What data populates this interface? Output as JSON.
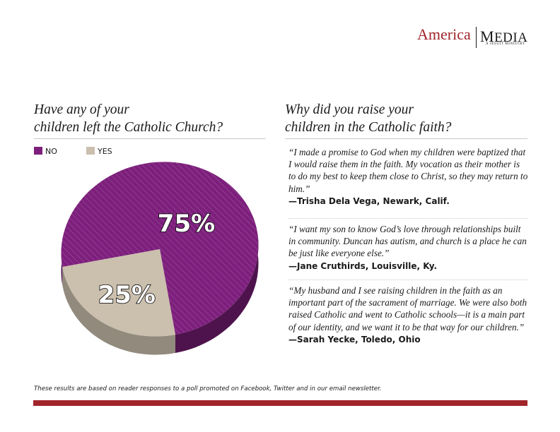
{
  "colors": {
    "no": "#7d1f7c",
    "yes": "#cbbfae",
    "brand_red": "#a0252b"
  },
  "logo": {
    "america": "America",
    "media_initial_m": "M",
    "media_rest": "EDIA",
    "tagline": "A JESUIT MINISTRY"
  },
  "left": {
    "question_line1": "Have any of your",
    "question_line2": "children left the Catholic Church?"
  },
  "right": {
    "question_line1": "Why did you raise your",
    "question_line2": "children in the Catholic faith?",
    "quotes": [
      {
        "text": "“I made a promise to God when my children were baptized that I would raise them in the faith. My vocation as their mother is to do my best to keep them close to Christ, so they may return to him.”",
        "attribution": "—Trisha Dela Vega, Newark, Calif."
      },
      {
        "text": "“I want my son to know God’s love through relationships built in community. Duncan has autism, and church is a place he can be just like everyone else.”",
        "attribution": "—Jane Cruthirds, Louisville, Ky."
      },
      {
        "text": "“My husband and I see raising children in the faith as an important part of the sacrament of marriage. We were also both raised Catholic and went to Catholic schools—it is a main part of our identity, and we want it to be that way for our children.”",
        "attribution": "—Sarah Yecke, Toledo, Ohio"
      }
    ]
  },
  "footnote": "These results are based on reader responses to a poll promoted on Facebook, Twitter and in our email newsletter.",
  "chart_data": {
    "type": "pie",
    "title": "Have any of your children left the Catholic Church?",
    "legend_position": "top-left",
    "slices": [
      {
        "label": "NO",
        "value": 75,
        "display": "75%",
        "color": "#7d1f7c"
      },
      {
        "label": "YES",
        "value": 25,
        "display": "25%",
        "color": "#cbbfae"
      }
    ]
  }
}
